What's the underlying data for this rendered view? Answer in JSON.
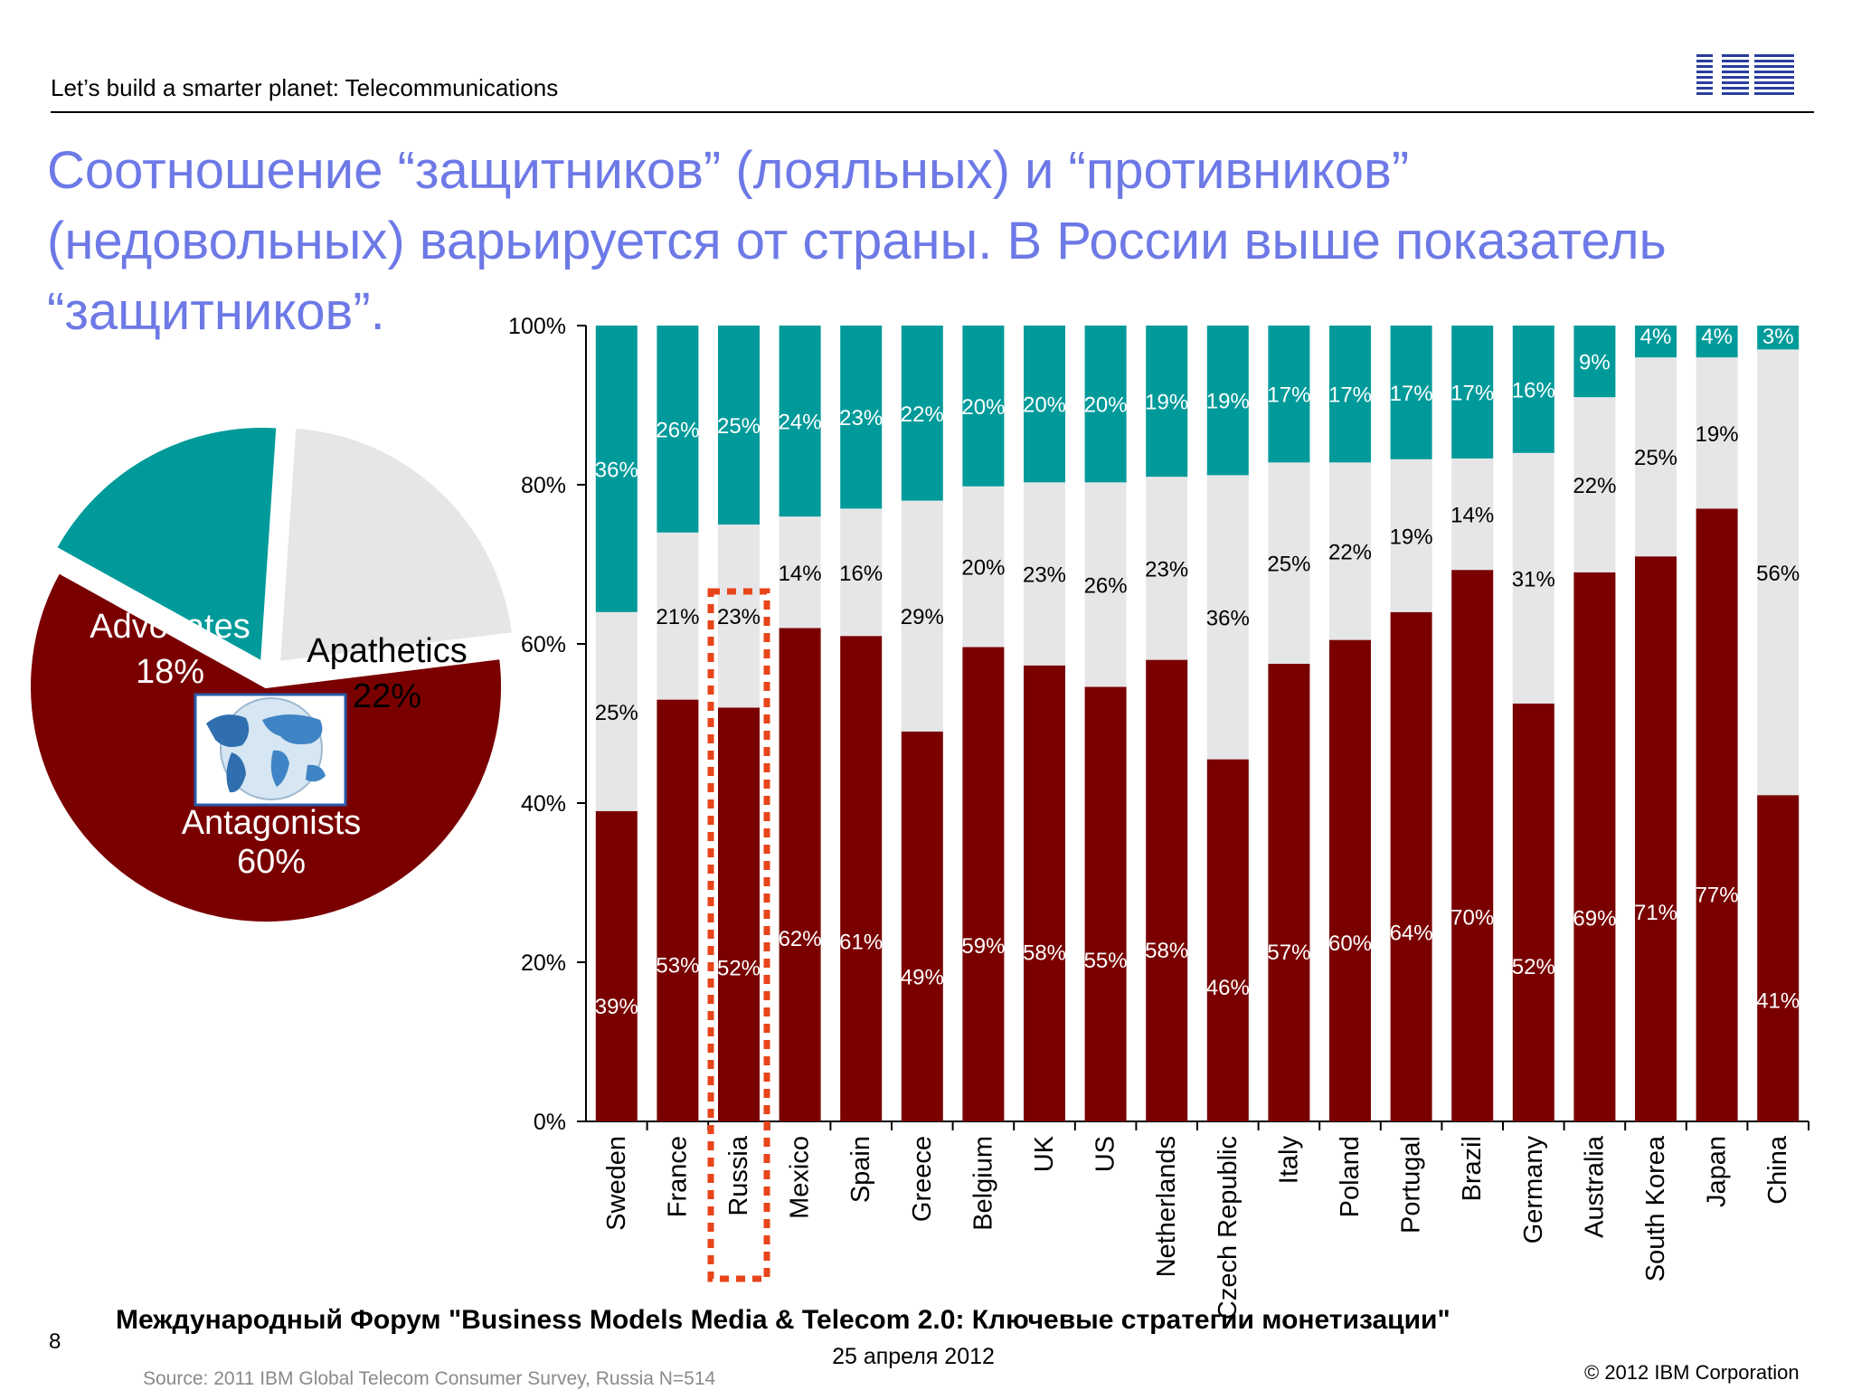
{
  "header": {
    "text": "Let’s build a smarter planet: Telecommunications",
    "logo": "IBM"
  },
  "title": {
    "line1": "Соотношение “защитников” (лояльных) и “противников”",
    "line2": "(недовольных) варьируется от страны. В России выше показатель",
    "line3": "“защитников”."
  },
  "colors": {
    "antagonists": "#7a0000",
    "apathetics": "#e6e6e8",
    "advocates": "#009a9a",
    "title": "#6d79e6",
    "highlight": "#e8441a"
  },
  "chart_data": [
    {
      "type": "pie",
      "slices": [
        {
          "label": "Antagonists",
          "value": 60
        },
        {
          "label": "Apathetics",
          "value": 22
        },
        {
          "label": "Advocates",
          "value": 18
        }
      ],
      "value_labels": [
        "60%",
        "22%",
        "18%"
      ],
      "icon": "world-map-icon"
    },
    {
      "type": "bar",
      "stacked": true,
      "ylim": [
        0,
        100
      ],
      "yticks": [
        "0%",
        "20%",
        "40%",
        "60%",
        "80%",
        "100%"
      ],
      "categories": [
        "Sweden",
        "France",
        "Russia",
        "Mexico",
        "Spain",
        "Greece",
        "Belgium",
        "UK",
        "US",
        "Netherlands",
        "Czech Republic",
        "Italy",
        "Poland",
        "Portugal",
        "Brazil",
        "Germany",
        "Australia",
        "South Korea",
        "Japan",
        "China"
      ],
      "series": [
        {
          "values": [
            39,
            53,
            52,
            62,
            61,
            49,
            59,
            58,
            55,
            58,
            46,
            57,
            60,
            64,
            70,
            52,
            69,
            71,
            77,
            41
          ]
        },
        {
          "values": [
            25,
            21,
            23,
            14,
            16,
            29,
            20,
            23,
            26,
            23,
            36,
            25,
            22,
            19,
            14,
            31,
            22,
            25,
            19,
            56
          ]
        },
        {
          "values": [
            36,
            26,
            25,
            24,
            23,
            22,
            20,
            20,
            20,
            19,
            19,
            17,
            17,
            17,
            17,
            16,
            9,
            4,
            4,
            3
          ]
        }
      ],
      "bar_tops": [
        [
          39,
          64,
          100
        ],
        [
          53,
          74,
          100
        ],
        [
          52,
          75,
          100
        ],
        [
          62,
          76,
          100
        ],
        [
          61,
          77,
          100
        ],
        [
          49,
          78,
          100
        ],
        [
          59.6,
          79.8,
          100
        ],
        [
          57.3,
          80.3,
          100
        ],
        [
          54.6,
          80.3,
          100
        ],
        [
          58,
          81,
          100
        ],
        [
          45.5,
          81.2,
          100
        ],
        [
          57.5,
          82.8,
          100
        ],
        [
          60.5,
          82.8,
          100
        ],
        [
          64,
          83.2,
          100
        ],
        [
          69.3,
          83.3,
          100
        ],
        [
          52.5,
          84,
          100
        ],
        [
          69,
          91,
          100
        ],
        [
          71,
          96,
          100
        ],
        [
          77,
          96,
          100
        ],
        [
          41,
          97,
          100
        ]
      ],
      "highlight": "Russia"
    }
  ],
  "footer": {
    "slide_number": "8",
    "forum": "Международный Форум \"Business Models Media & Telecom 2.0: Ключевые стратегии монетизации\"",
    "date": "25 апреля 2012",
    "source": "Source: 2011 IBM Global Telecom Consumer Survey, Russia N=514",
    "copyright": "© 2012 IBM Corporation"
  }
}
